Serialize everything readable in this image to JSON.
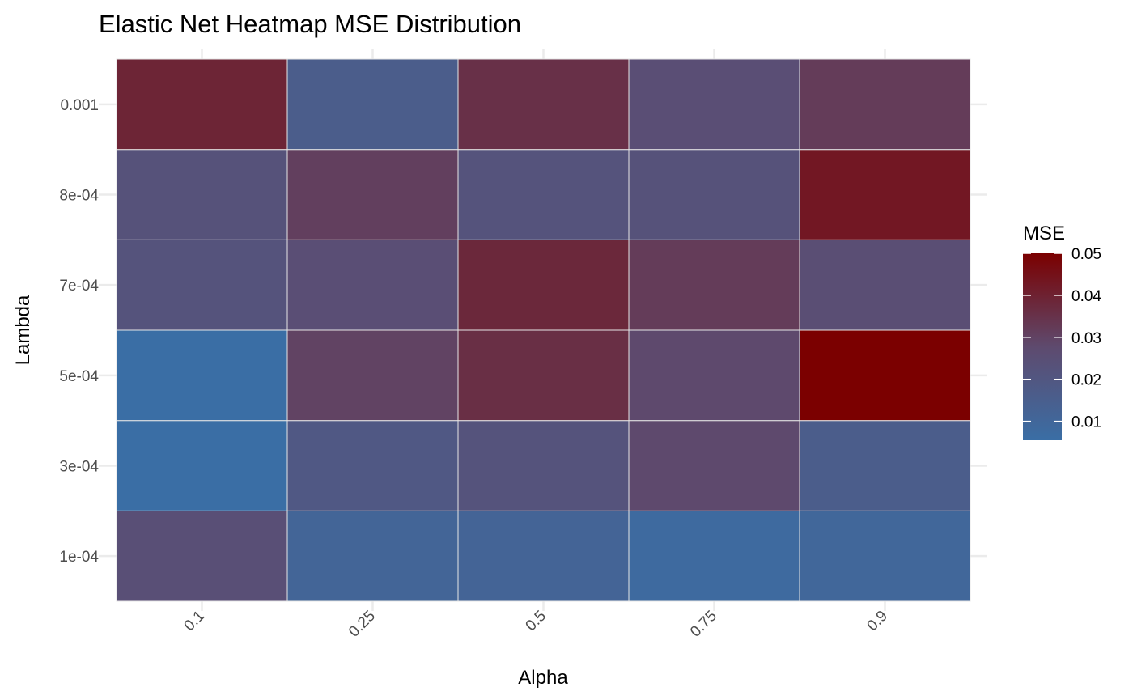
{
  "chart_data": {
    "type": "heatmap",
    "title": "Elastic Net Heatmap MSE Distribution",
    "xlabel": "Alpha",
    "ylabel": "Lambda",
    "x_categories": [
      "0.1",
      "0.25",
      "0.5",
      "0.75",
      "0.9"
    ],
    "y_categories": [
      "1e-04",
      "3e-04",
      "5e-04",
      "7e-04",
      "8e-04",
      "0.001"
    ],
    "values": [
      [
        0.0245,
        0.011,
        0.0115,
        0.008,
        0.01
      ],
      [
        0.0055,
        0.019,
        0.022,
        0.028,
        0.016
      ],
      [
        0.0055,
        0.03,
        0.036,
        0.028,
        0.05
      ],
      [
        0.022,
        0.025,
        0.038,
        0.032,
        0.0255
      ],
      [
        0.023,
        0.031,
        0.022,
        0.023,
        0.043
      ],
      [
        0.039,
        0.016,
        0.0355,
        0.025,
        0.032
      ]
    ],
    "legend": {
      "title": "MSE",
      "ticks": [
        "0.01",
        "0.02",
        "0.03",
        "0.04",
        "0.05"
      ],
      "range": [
        0.0055,
        0.05
      ],
      "placement": "right"
    },
    "colors": {
      "low": "#3a6ea5",
      "mid": "#5e4a6e",
      "high": "#7b0000",
      "panel_grid": "#ebebeb",
      "tile_border": "#e6e6e6"
    }
  }
}
